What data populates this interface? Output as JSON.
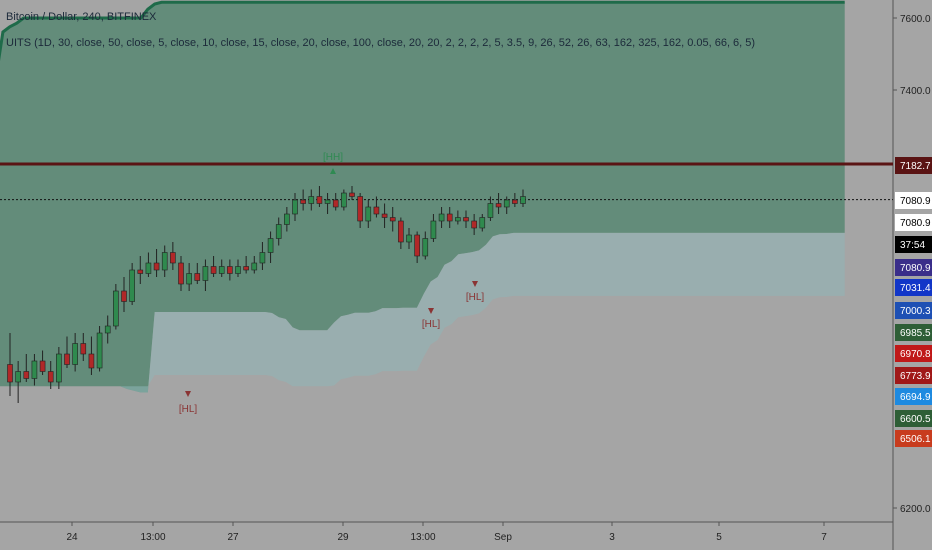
{
  "header": {
    "title": "Bitcoin / Dollar, 240, BITFINEX",
    "indicator": "UITS (1D, 30, close, 50, close, 5, close, 10, close, 15, close, 20, close, 100, close, 20, 20, 2, 2, 2, 2, 5, 3.5, 9, 26, 52, 26, 63, 162, 325, 162, 0.05, 66, 6, 5)"
  },
  "chart_data": {
    "type": "candlestick",
    "y_range": [
      6170,
      7750
    ],
    "y_ticks": [
      7600.0,
      7400.0,
      6200.0
    ],
    "x_ticks": [
      "24",
      "13:00",
      "27",
      "29",
      "13:00",
      "Sep",
      "3",
      "5",
      "7"
    ],
    "candles": [
      {
        "o": 6610,
        "h": 6700,
        "l": 6520,
        "c": 6560
      },
      {
        "o": 6560,
        "h": 6620,
        "l": 6500,
        "c": 6590
      },
      {
        "o": 6590,
        "h": 6640,
        "l": 6560,
        "c": 6570
      },
      {
        "o": 6570,
        "h": 6640,
        "l": 6550,
        "c": 6620
      },
      {
        "o": 6620,
        "h": 6650,
        "l": 6580,
        "c": 6590
      },
      {
        "o": 6590,
        "h": 6620,
        "l": 6540,
        "c": 6560
      },
      {
        "o": 6560,
        "h": 6660,
        "l": 6540,
        "c": 6640
      },
      {
        "o": 6640,
        "h": 6690,
        "l": 6600,
        "c": 6610
      },
      {
        "o": 6610,
        "h": 6700,
        "l": 6590,
        "c": 6670
      },
      {
        "o": 6670,
        "h": 6700,
        "l": 6620,
        "c": 6640
      },
      {
        "o": 6640,
        "h": 6690,
        "l": 6580,
        "c": 6600
      },
      {
        "o": 6600,
        "h": 6720,
        "l": 6590,
        "c": 6700
      },
      {
        "o": 6700,
        "h": 6750,
        "l": 6670,
        "c": 6720
      },
      {
        "o": 6720,
        "h": 6840,
        "l": 6710,
        "c": 6820
      },
      {
        "o": 6820,
        "h": 6860,
        "l": 6760,
        "c": 6790
      },
      {
        "o": 6790,
        "h": 6900,
        "l": 6780,
        "c": 6880
      },
      {
        "o": 6880,
        "h": 6920,
        "l": 6840,
        "c": 6870
      },
      {
        "o": 6870,
        "h": 6930,
        "l": 6860,
        "c": 6900
      },
      {
        "o": 6900,
        "h": 6940,
        "l": 6860,
        "c": 6880
      },
      {
        "o": 6880,
        "h": 6950,
        "l": 6860,
        "c": 6930
      },
      {
        "o": 6930,
        "h": 6960,
        "l": 6880,
        "c": 6900
      },
      {
        "o": 6900,
        "h": 6920,
        "l": 6820,
        "c": 6840
      },
      {
        "o": 6840,
        "h": 6900,
        "l": 6820,
        "c": 6870
      },
      {
        "o": 6870,
        "h": 6900,
        "l": 6840,
        "c": 6850
      },
      {
        "o": 6850,
        "h": 6910,
        "l": 6820,
        "c": 6890
      },
      {
        "o": 6890,
        "h": 6920,
        "l": 6860,
        "c": 6870
      },
      {
        "o": 6870,
        "h": 6910,
        "l": 6860,
        "c": 6890
      },
      {
        "o": 6890,
        "h": 6910,
        "l": 6850,
        "c": 6870
      },
      {
        "o": 6870,
        "h": 6910,
        "l": 6860,
        "c": 6890
      },
      {
        "o": 6890,
        "h": 6920,
        "l": 6870,
        "c": 6880
      },
      {
        "o": 6880,
        "h": 6920,
        "l": 6870,
        "c": 6900
      },
      {
        "o": 6900,
        "h": 6960,
        "l": 6880,
        "c": 6930
      },
      {
        "o": 6930,
        "h": 6990,
        "l": 6900,
        "c": 6970
      },
      {
        "o": 6970,
        "h": 7030,
        "l": 6950,
        "c": 7010
      },
      {
        "o": 7010,
        "h": 7060,
        "l": 6990,
        "c": 7040
      },
      {
        "o": 7040,
        "h": 7100,
        "l": 7020,
        "c": 7080
      },
      {
        "o": 7080,
        "h": 7110,
        "l": 7050,
        "c": 7070
      },
      {
        "o": 7070,
        "h": 7110,
        "l": 7050,
        "c": 7090
      },
      {
        "o": 7090,
        "h": 7120,
        "l": 7060,
        "c": 7070
      },
      {
        "o": 7070,
        "h": 7100,
        "l": 7040,
        "c": 7080
      },
      {
        "o": 7080,
        "h": 7100,
        "l": 7050,
        "c": 7060
      },
      {
        "o": 7060,
        "h": 7110,
        "l": 7050,
        "c": 7100
      },
      {
        "o": 7100,
        "h": 7120,
        "l": 7080,
        "c": 7090
      },
      {
        "o": 7090,
        "h": 7100,
        "l": 7000,
        "c": 7020
      },
      {
        "o": 7020,
        "h": 7080,
        "l": 7000,
        "c": 7060
      },
      {
        "o": 7060,
        "h": 7090,
        "l": 7030,
        "c": 7040
      },
      {
        "o": 7040,
        "h": 7070,
        "l": 7000,
        "c": 7030
      },
      {
        "o": 7030,
        "h": 7060,
        "l": 6990,
        "c": 7020
      },
      {
        "o": 7020,
        "h": 7030,
        "l": 6940,
        "c": 6960
      },
      {
        "o": 6960,
        "h": 7000,
        "l": 6940,
        "c": 6980
      },
      {
        "o": 6980,
        "h": 6990,
        "l": 6900,
        "c": 6920
      },
      {
        "o": 6920,
        "h": 6990,
        "l": 6910,
        "c": 6970
      },
      {
        "o": 6970,
        "h": 7040,
        "l": 6960,
        "c": 7020
      },
      {
        "o": 7020,
        "h": 7060,
        "l": 7000,
        "c": 7040
      },
      {
        "o": 7040,
        "h": 7060,
        "l": 7000,
        "c": 7020
      },
      {
        "o": 7020,
        "h": 7050,
        "l": 7010,
        "c": 7030
      },
      {
        "o": 7030,
        "h": 7050,
        "l": 7000,
        "c": 7020
      },
      {
        "o": 7020,
        "h": 7040,
        "l": 6980,
        "c": 7000
      },
      {
        "o": 7000,
        "h": 7040,
        "l": 6990,
        "c": 7030
      },
      {
        "o": 7030,
        "h": 7090,
        "l": 7020,
        "c": 7070
      },
      {
        "o": 7070,
        "h": 7100,
        "l": 7040,
        "c": 7060
      },
      {
        "o": 7060,
        "h": 7090,
        "l": 7040,
        "c": 7080
      },
      {
        "o": 7080,
        "h": 7100,
        "l": 7060,
        "c": 7070
      },
      {
        "o": 7070,
        "h": 7110,
        "l": 7060,
        "c": 7090
      }
    ],
    "ichimoku": {
      "span_a": [
        6548,
        6548,
        6548,
        6548,
        6548,
        6548,
        6548,
        6548,
        6548,
        6548,
        6548,
        6548,
        6548,
        6548,
        6548,
        6548,
        6548,
        6548,
        6548,
        6540,
        6535,
        6530,
        6530,
        6760,
        6760,
        6760,
        6760,
        6760,
        6760,
        6760,
        6760,
        6760,
        6760,
        6760,
        6760,
        6760,
        6760,
        6760,
        6760,
        6760,
        6757,
        6745,
        6740,
        6716,
        6708,
        6708,
        6708,
        6708,
        6708,
        6730,
        6748,
        6752,
        6758,
        6758,
        6758,
        6762,
        6771,
        6771,
        6771,
        6772,
        6772,
        6772,
        6812,
        6847,
        6860,
        6895,
        6905,
        6925,
        6928,
        6931,
        6936,
        6952,
        6976,
        6982,
        6983,
        6986,
        6986,
        6986,
        6986,
        6986,
        6986,
        6986,
        6986,
        6986,
        6986,
        6986,
        6986,
        6986,
        6986,
        6986,
        6986,
        6986,
        6986,
        6986,
        6986,
        6986,
        6986,
        6986,
        6986,
        6986,
        6986,
        6986,
        6986,
        6986,
        6986,
        6986,
        6986,
        6986,
        6986,
        6986,
        6986,
        6986,
        6986,
        6986,
        6986,
        6986,
        6986,
        6986,
        6986,
        6986,
        6986,
        6986,
        6986,
        6986
      ],
      "span_b": [
        7430,
        7560,
        7575,
        7585,
        7600,
        7600,
        7600,
        7600,
        7600,
        7600,
        7600,
        7600,
        7600,
        7600,
        7600,
        7600,
        7600,
        7600,
        7600,
        7600,
        7600,
        7600,
        7625,
        7640,
        7645,
        7645,
        7645,
        7645,
        7645,
        7645,
        7645,
        7645,
        7645,
        7645,
        7645,
        7645,
        7645,
        7645,
        7645,
        7645,
        7645,
        7645,
        7645,
        7645,
        7645,
        7645,
        7645,
        7645,
        7645,
        7645,
        7645,
        7645,
        7645,
        7645,
        7645,
        7645,
        7645,
        7645,
        7645,
        7645,
        7645,
        7645,
        7645,
        7645,
        7645,
        7645,
        7645,
        7645,
        7645,
        7645,
        7645,
        7645,
        7645,
        7645,
        7645,
        7645,
        7645,
        7645,
        7645,
        7645,
        7645,
        7645,
        7645,
        7645,
        7645,
        7645,
        7645,
        7645,
        7645,
        7645,
        7645,
        7645,
        7645,
        7645,
        7645,
        7645,
        7645,
        7645,
        7645,
        7645,
        7645,
        7645,
        7645,
        7645,
        7645,
        7645,
        7645,
        7645,
        7645,
        7645,
        7645,
        7645,
        7645,
        7645,
        7645,
        7645,
        7645,
        7645,
        7645,
        7645,
        7645,
        7645,
        7645,
        7645
      ]
    },
    "price_badges": [
      {
        "value": "7182.7",
        "bg": "#5a1414",
        "fg": "#ffffff"
      },
      {
        "value": "7080.9",
        "bg": "#ffffff",
        "fg": "#000000"
      },
      {
        "value": "7080.9",
        "bg": "#ffffff",
        "fg": "#000000"
      },
      {
        "value": "37:54",
        "bg": "#000000",
        "fg": "#ffffff"
      },
      {
        "value": "7080.9",
        "bg": "#3a2e8a",
        "fg": "#ffffff"
      },
      {
        "value": "7031.4",
        "bg": "#1236c8",
        "fg": "#ffffff"
      },
      {
        "value": "7000.3",
        "bg": "#1e50b4",
        "fg": "#ffffff"
      },
      {
        "value": "6985.5",
        "bg": "#2e5e36",
        "fg": "#ffffff"
      },
      {
        "value": "6970.8",
        "bg": "#c01818",
        "fg": "#ffffff"
      },
      {
        "value": "6773.9",
        "bg": "#a01818",
        "fg": "#ffffff"
      },
      {
        "value": "6694.9",
        "bg": "#1e8ae0",
        "fg": "#ffffff"
      },
      {
        "value": "6600.5",
        "bg": "#2e5e36",
        "fg": "#ffffff"
      },
      {
        "value": "6506.1",
        "bg": "#c83c1e",
        "fg": "#ffffff"
      }
    ],
    "markers": [
      {
        "label": "[HH]",
        "color": "#2f8a52",
        "arrow": "up"
      },
      {
        "label": "[HL]",
        "color": "#8a3434",
        "arrow": "down"
      },
      {
        "label": "[HL]",
        "color": "#8a3434",
        "arrow": "down"
      },
      {
        "label": "[HL]",
        "color": "#8a3434",
        "arrow": "down"
      }
    ],
    "colors": {
      "background": "#a5a5a5",
      "cloud_bear_fill": "#5c8a76",
      "cloud_bull_fill": "#8fb6b8",
      "span_b_line": "#1f6b4a",
      "bull_candle": "#2f8a4e",
      "bear_candle": "#b02828",
      "resistance_line": "#5a1414"
    }
  }
}
